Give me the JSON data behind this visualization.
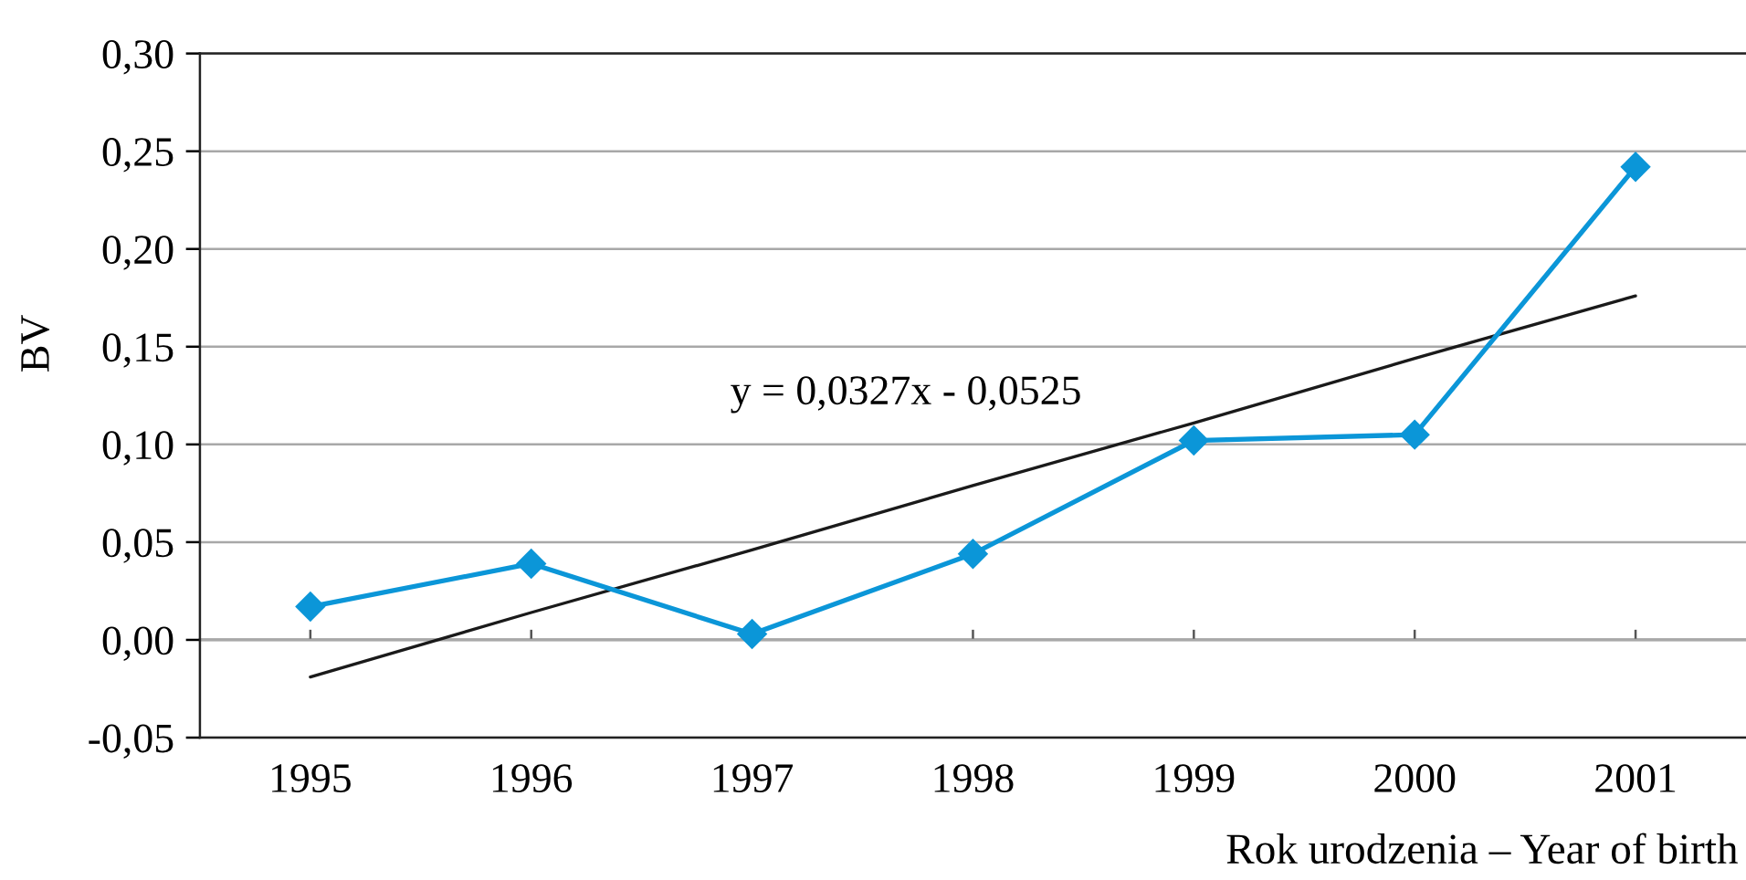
{
  "chart_data": {
    "type": "line",
    "ylabel": "BV",
    "xlabel": "Rok urodzenia – Year of birth",
    "categories": [
      "1995",
      "1996",
      "1997",
      "1998",
      "1999",
      "2000",
      "2001"
    ],
    "series": [
      {
        "color": "#0b96d8",
        "values": [
          0.017,
          0.039,
          0.003,
          0.044,
          0.102,
          0.105,
          0.242
        ]
      },
      {
        "type": "line",
        "values": [
          -0.019,
          0.014,
          0.046,
          0.079,
          0.111,
          0.144,
          0.176
        ],
        "color": "#1a1a1a",
        "marker": "none"
      }
    ],
    "ylim": [
      -0.05,
      0.3
    ],
    "yticks": [
      {
        "value": -0.05,
        "label": "-0,05"
      },
      {
        "value": 0,
        "label": "0,00"
      },
      {
        "value": 0.05,
        "label": "0,05"
      },
      {
        "value": 0.1,
        "label": "0,10"
      },
      {
        "value": 0.15,
        "label": "0,15"
      },
      {
        "value": 0.2,
        "label": "0,20"
      },
      {
        "value": 0.25,
        "label": "0,25"
      },
      {
        "value": 0.3,
        "label": "0,30"
      }
    ],
    "grid": "y",
    "marker": "diamond",
    "line_style": "solid",
    "annotations": [
      "y = 0,0327x - 0,0525"
    ]
  }
}
